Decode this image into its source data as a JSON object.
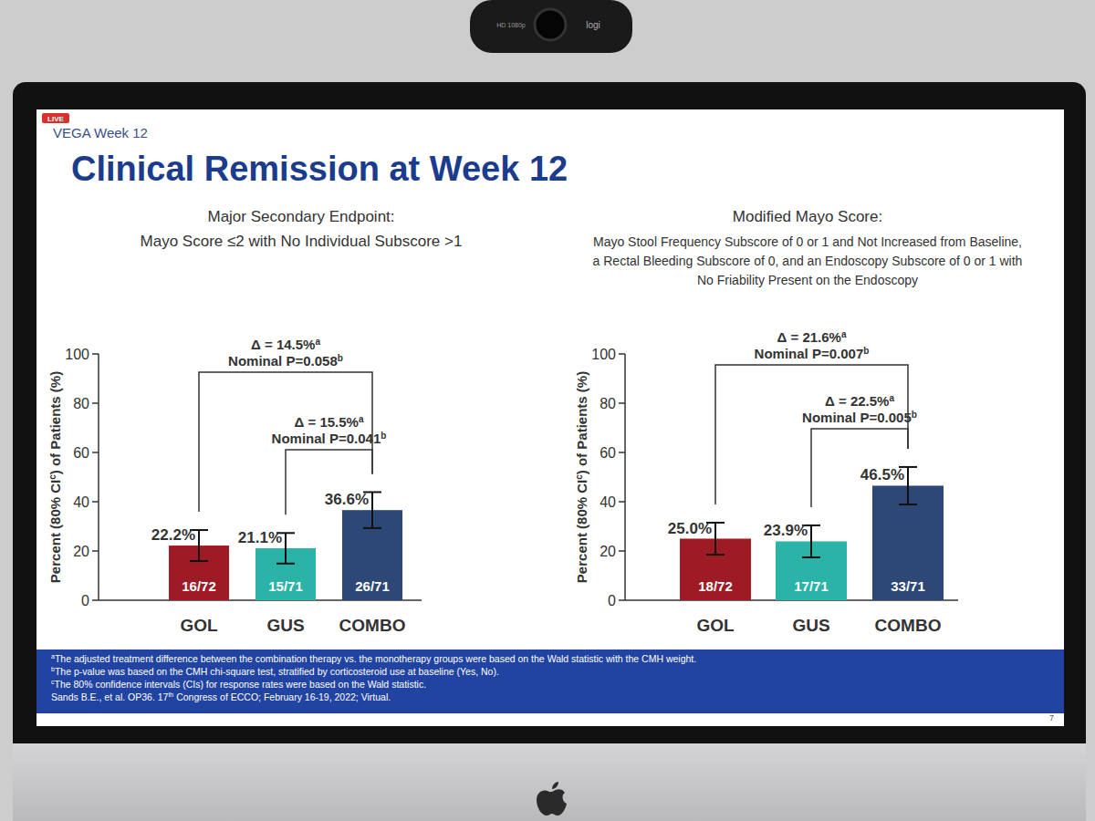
{
  "frame": {
    "camera_brand": "logi",
    "camera_label": "HD 1080p"
  },
  "slide": {
    "live": "LIVE",
    "header": "VEGA Week 12",
    "title": "Clinical Remission at Week 12",
    "footnotes": [
      {
        "mark": "a",
        "text": "The adjusted treatment difference between the combination therapy vs. the monotherapy groups were based on the Wald statistic with the CMH weight."
      },
      {
        "mark": "b",
        "text": "The p-value was based on the CMH chi-square test, stratified by corticosteroid use at baseline (Yes, No)."
      },
      {
        "mark": "c",
        "text": "The 80% confidence intervals (CIs) for response rates were based on the Wald statistic."
      }
    ],
    "reference": {
      "before": "Sands B.E., et al. OP36. 17",
      "sup": "th",
      "after": " Congress of ECCO; February 16-19, 2022; Virtual."
    },
    "page": "7"
  },
  "chart_data": [
    {
      "type": "bar",
      "title": "Major Secondary Endpoint:",
      "subtitle": [
        "Mayo Score ≤2 with No Individual Subscore >1"
      ],
      "ylabel": "Percent (80% CI",
      "ylabel_note": "c",
      "ylabel_end": ") of Patients (%)",
      "categories": [
        "GOL",
        "GUS",
        "COMBO"
      ],
      "values": [
        22.2,
        21.1,
        36.6
      ],
      "value_labels": [
        "22.2%",
        "21.1%",
        "36.6%"
      ],
      "data_labels": true,
      "errors": [
        6.3,
        6.2,
        7.3
      ],
      "count_labels": [
        "16/72",
        "15/71",
        "26/71"
      ],
      "colors": [
        "#9e1b26",
        "#2bb3a7",
        "#2d4876"
      ],
      "ylim": [
        0,
        100
      ],
      "yticks": [
        0,
        20,
        40,
        60,
        80,
        100
      ],
      "grid": false,
      "annotations": [
        {
          "between": [
            "GOL",
            "COMBO"
          ],
          "text": "Δ = 14.5%",
          "note": "a",
          "p_text": "Nominal P=0.058",
          "p_note": "b"
        },
        {
          "between": [
            "GUS",
            "COMBO"
          ],
          "text": "Δ = 15.5%",
          "note": "a",
          "p_text": "Nominal P=0.041",
          "p_note": "b"
        }
      ]
    },
    {
      "type": "bar",
      "title": "Modified Mayo Score:",
      "subtitle": [
        "Mayo Stool Frequency Subscore of 0 or 1 and Not Increased from Baseline,",
        "a Rectal Bleeding Subscore of 0, and an Endoscopy Subscore of 0 or 1 with",
        "No Friability Present on the Endoscopy"
      ],
      "ylabel": "Percent (80% CI",
      "ylabel_note": "c",
      "ylabel_end": ") of Patients (%)",
      "categories": [
        "GOL",
        "GUS",
        "COMBO"
      ],
      "values": [
        25.0,
        23.9,
        46.5
      ],
      "value_labels": [
        "25.0%",
        "23.9%",
        "46.5%"
      ],
      "data_labels": true,
      "errors": [
        6.5,
        6.5,
        7.6
      ],
      "count_labels": [
        "18/72",
        "17/71",
        "33/71"
      ],
      "colors": [
        "#9e1b26",
        "#2bb3a7",
        "#2d4876"
      ],
      "ylim": [
        0,
        100
      ],
      "yticks": [
        0,
        20,
        40,
        60,
        80,
        100
      ],
      "grid": false,
      "annotations": [
        {
          "between": [
            "GOL",
            "COMBO"
          ],
          "text": "Δ = 21.6%",
          "note": "a",
          "p_text": "Nominal P=0.007",
          "p_note": "b"
        },
        {
          "between": [
            "GUS",
            "COMBO"
          ],
          "text": "Δ = 22.5%",
          "note": "a",
          "p_text": "Nominal P=0.005",
          "p_note": "b"
        }
      ]
    }
  ]
}
